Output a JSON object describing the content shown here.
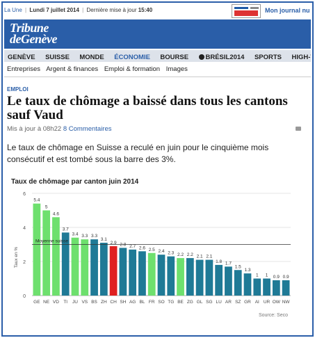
{
  "topbar": {
    "section": "La Une",
    "date": "Lundi 7 juillet 2014",
    "update_label": "Dernière mise à jour",
    "update_time": "15:40",
    "journal_link": "Mon journal nu"
  },
  "logo": {
    "line1": "Tribune",
    "line2": "deGenève"
  },
  "nav": {
    "items": [
      "GENÈVE",
      "SUISSE",
      "MONDE",
      "ÉCONOMIE",
      "BOURSE",
      "BRÉSIL2014",
      "SPORTS",
      "HIGH-TEC"
    ],
    "active": "ÉCONOMIE"
  },
  "subnav": {
    "items": [
      "Entreprises",
      "Argent & finances",
      "Emploi & formation",
      "Images"
    ]
  },
  "article": {
    "kicker": "EMPLOI",
    "headline": "Le taux de chômage a baissé dans tous les cantons sauf Vaud",
    "updated": "Mis à jour à 08h22",
    "comments": "8 Commentaires",
    "lead": "Le taux de chômage en Suisse a reculé en juin pour le cinquième mois consécutif et est tombé sous la barre des 3%."
  },
  "colors": {
    "brand": "#2a5ea8",
    "bar_default": "#1f7a96",
    "bar_highlight": "#6ee06e",
    "bar_national": "#e02020"
  },
  "chart_data": {
    "type": "bar",
    "title": "Taux de chômage par canton juin 2014",
    "ylabel": "Taux en %",
    "ylim": [
      0,
      6
    ],
    "yticks": [
      0,
      2,
      4,
      6
    ],
    "reference_line": {
      "label": "Moyenne suisse",
      "value": 3
    },
    "source": "Source: Seco",
    "categories": [
      "GE",
      "NE",
      "VD",
      "TI",
      "JU",
      "VS",
      "BS",
      "ZH",
      "CH",
      "SH",
      "AG",
      "BL",
      "FR",
      "SO",
      "TG",
      "BE",
      "ZG",
      "GL",
      "SG",
      "LU",
      "AR",
      "SZ",
      "GR",
      "AI",
      "UR",
      "OW",
      "NW"
    ],
    "values": [
      5.4,
      5,
      4.6,
      3.7,
      3.4,
      3.3,
      3.3,
      3.1,
      2.9,
      2.8,
      2.7,
      2.6,
      2.5,
      2.4,
      2.3,
      2.2,
      2.2,
      2.1,
      2.1,
      1.8,
      1.7,
      1.5,
      1.3,
      1,
      1,
      0.9,
      0.9
    ],
    "value_labels": [
      "5.4",
      "5",
      "4.6",
      "3.7",
      "3.4",
      "3.3",
      "3.3",
      "3.1",
      "2.9",
      "2.8",
      "2.7",
      "2.6",
      "2.5",
      "2.4",
      "2.3",
      "2.2",
      "2.2",
      "2.1",
      "2.1",
      "1.8",
      "1.7",
      "1.5",
      "1.3",
      "1",
      "1",
      "0.9",
      "0.9"
    ],
    "highlight_categories": [
      "GE",
      "NE",
      "VD",
      "JU",
      "VS",
      "FR",
      "BE"
    ],
    "national_category": "CH"
  }
}
